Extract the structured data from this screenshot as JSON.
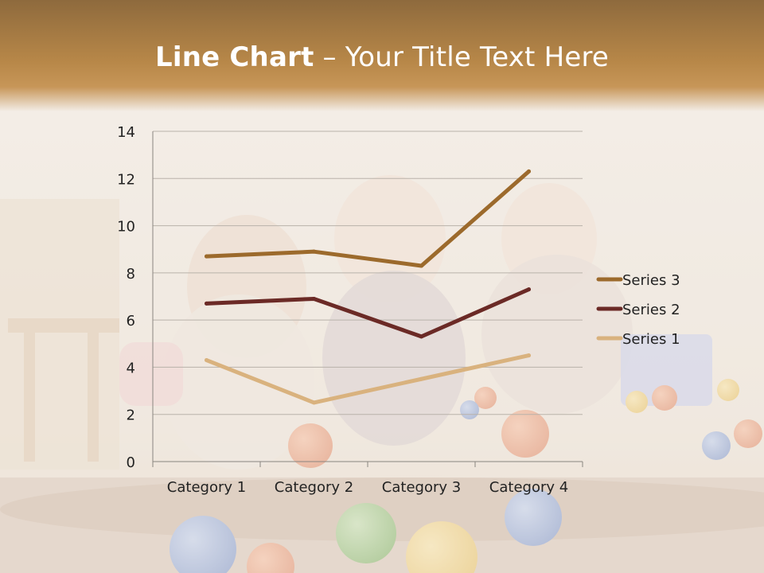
{
  "slide": {
    "title_bold": "Line Chart",
    "title_rest": " – Your Title Text Here"
  },
  "chart_data": {
    "type": "line",
    "title": "",
    "xlabel": "",
    "ylabel": "",
    "categories": [
      "Category 1",
      "Category 2",
      "Category 3",
      "Category 4"
    ],
    "ylim": [
      0,
      14
    ],
    "yticks": [
      0,
      2,
      4,
      6,
      8,
      10,
      12,
      14
    ],
    "grid": true,
    "legend_position": "right",
    "series": [
      {
        "name": "Series 3",
        "values": [
          8.7,
          8.9,
          8.3,
          12.3
        ],
        "color": "#9c6a2c"
      },
      {
        "name": "Series 2",
        "values": [
          6.7,
          6.9,
          5.3,
          7.3
        ],
        "color": "#6b2a26"
      },
      {
        "name": "Series 1",
        "values": [
          4.3,
          2.5,
          3.5,
          4.5
        ],
        "color": "#d9b27e"
      }
    ]
  }
}
